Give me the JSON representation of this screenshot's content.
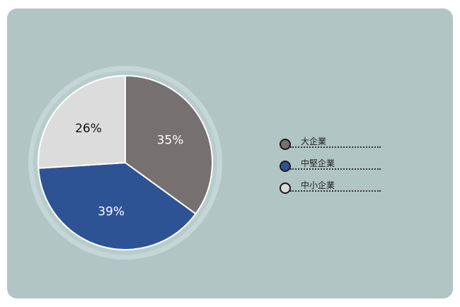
{
  "chart_data": {
    "type": "pie",
    "categories": [
      "大企業",
      "中堅企業",
      "中小企業"
    ],
    "values": [
      35,
      39,
      26
    ],
    "labels": [
      "35%",
      "39%",
      "26%"
    ],
    "colors": [
      "#777070",
      "#2e5395",
      "#dcdcdc"
    ],
    "label_colors": [
      "#ffffff",
      "#ffffff",
      "#111111"
    ],
    "start": "top",
    "direction": "clockwise",
    "legend_position": "right"
  },
  "background_color": "#b0c5c4"
}
